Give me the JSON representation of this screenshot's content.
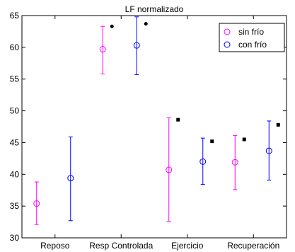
{
  "chart_data": {
    "type": "scatter",
    "title": "LF normalizado",
    "xlabel": "",
    "ylabel": "",
    "categories": [
      "Reposo",
      "Resp Controlada",
      "Ejercicio",
      "Recuperación"
    ],
    "ylim": [
      30,
      65
    ],
    "yticks": [
      30,
      35,
      40,
      45,
      50,
      55,
      60,
      65
    ],
    "grid": false,
    "legend_position": "top-right",
    "series": [
      {
        "name": "sin frío",
        "color": "#ff00ff",
        "marker": "circle",
        "values": [
          35.4,
          59.7,
          40.7,
          41.9
        ],
        "lower": [
          32.1,
          55.8,
          32.6,
          37.6
        ],
        "upper": [
          38.8,
          63.3,
          48.9,
          46.1
        ]
      },
      {
        "name": "con frío",
        "color": "#0000ff",
        "marker": "circle",
        "values": [
          39.4,
          60.3,
          42.0,
          43.7
        ],
        "lower": [
          32.7,
          55.7,
          38.4,
          39.1
        ],
        "upper": [
          45.9,
          64.8,
          45.7,
          48.4
        ]
      }
    ],
    "annotations": [
      {
        "category": 1,
        "after_series": 0,
        "y": 63.3,
        "symbol": "dot"
      },
      {
        "category": 1,
        "after_series": 1,
        "y": 63.7,
        "symbol": "dot"
      },
      {
        "category": 2,
        "after_series": 0,
        "y": 48.6,
        "symbol": "square"
      },
      {
        "category": 2,
        "after_series": 1,
        "y": 45.2,
        "symbol": "square"
      },
      {
        "category": 3,
        "after_series": 0,
        "y": 45.5,
        "symbol": "square"
      },
      {
        "category": 3,
        "after_series": 1,
        "y": 47.8,
        "symbol": "square"
      }
    ]
  }
}
